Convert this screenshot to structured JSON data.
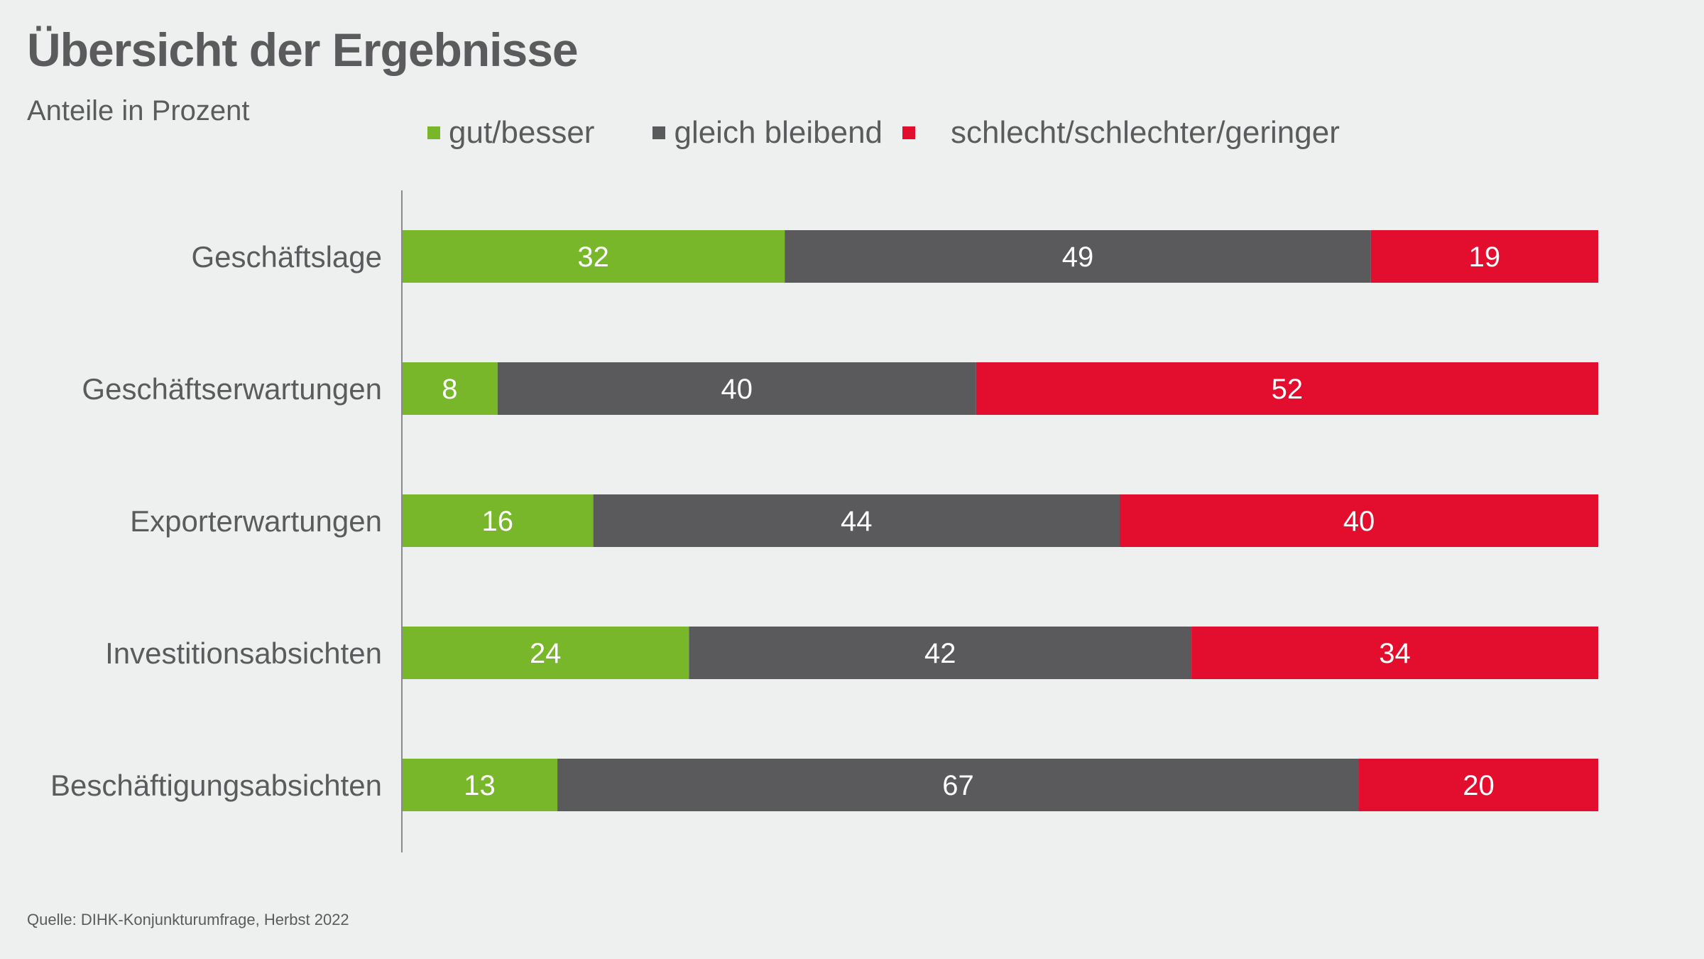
{
  "header": {
    "title": "Übersicht der Ergebnisse",
    "subtitle": "Anteile in Prozent"
  },
  "legend": [
    {
      "label": "gut/besser",
      "color": "#78b72a"
    },
    {
      "label": "gleich bleibend",
      "color": "#5a5a5c"
    },
    {
      "label": "schlecht/schlechter/geringer",
      "color": "#e30d2e"
    }
  ],
  "source": "Quelle: DIHK-Konjunkturumfrage, Herbst 2022",
  "chart_data": {
    "type": "bar",
    "orientation": "horizontal",
    "stacked": true,
    "title": "Übersicht der Ergebnisse",
    "subtitle": "Anteile in Prozent",
    "xlabel": "",
    "ylabel": "",
    "xlim": [
      0,
      100
    ],
    "grid": false,
    "legend_position": "top",
    "categories": [
      "Geschäftslage",
      "Geschäftserwartungen",
      "Exporterwartungen",
      "Investitionsabsichten",
      "Beschäftigungsabsichten"
    ],
    "series": [
      {
        "name": "gut/besser",
        "color": "#78b72a",
        "values": [
          32,
          8,
          16,
          24,
          13
        ]
      },
      {
        "name": "gleich bleibend",
        "color": "#5a5a5c",
        "values": [
          49,
          40,
          44,
          42,
          67
        ]
      },
      {
        "name": "schlecht/schlechter/geringer",
        "color": "#e30d2e",
        "values": [
          19,
          52,
          40,
          34,
          20
        ]
      }
    ],
    "data_label_color": "#ffffff",
    "axis_color": "#8a8a8a"
  }
}
